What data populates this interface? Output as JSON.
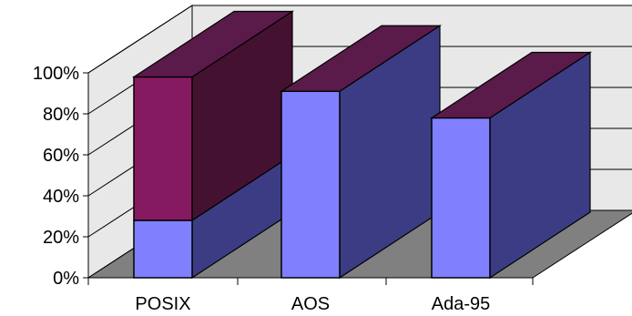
{
  "chart_data": {
    "type": "bar",
    "stacked": true,
    "three_d": true,
    "categories": [
      "POSIX",
      "AOS",
      "Ada-95"
    ],
    "series": [
      {
        "values": [
          28,
          91,
          78
        ],
        "colors": {
          "front": "#8080ff",
          "side": "#3c3c84",
          "top": "#5a1a4a"
        }
      },
      {
        "values": [
          70,
          0,
          0
        ],
        "colors": {
          "front": "#861a60",
          "side": "#441230",
          "top": "#5a1a4a"
        }
      }
    ],
    "ylim": [
      0,
      100
    ],
    "yticks": [
      0,
      20,
      40,
      60,
      80,
      100
    ],
    "ytick_labels": [
      "0%",
      "20%",
      "40%",
      "60%",
      "80%",
      "100%"
    ],
    "grid": true,
    "legend": "none",
    "wall_color": "#e8e8e8",
    "floor_color": "#808080",
    "title": "",
    "xlabel": "",
    "ylabel": ""
  }
}
